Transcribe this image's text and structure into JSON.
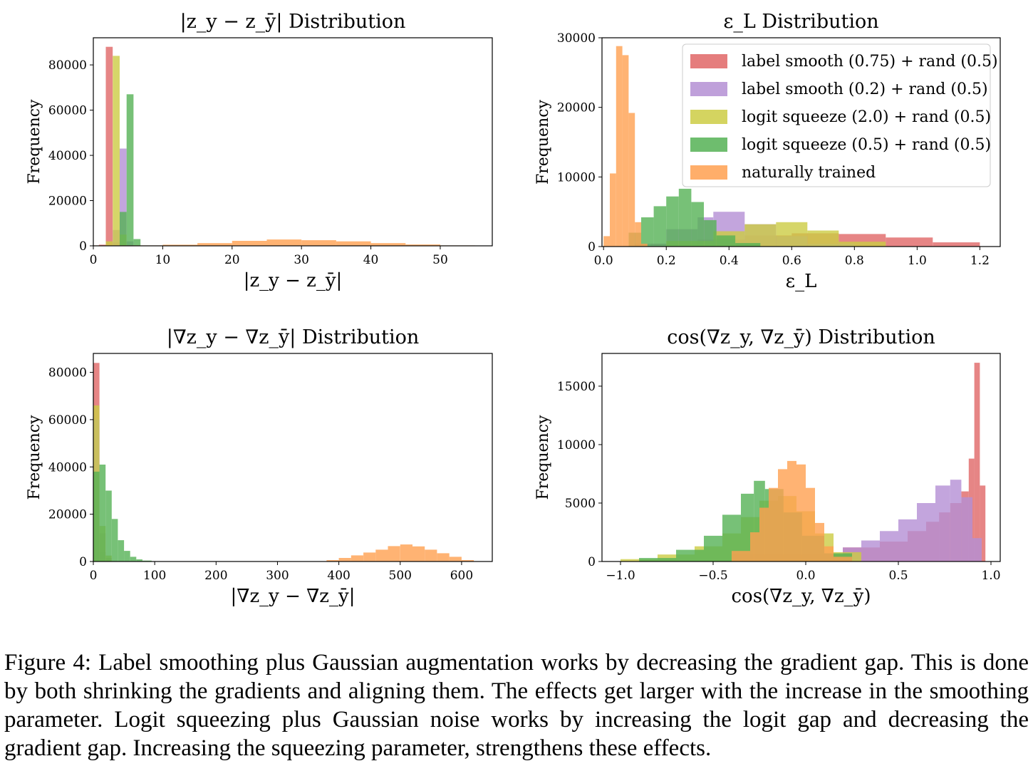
{
  "caption": {
    "label": "Figure 4:",
    "text": "Label smoothing plus Gaussian augmentation works by decreasing the gradient gap. This is done by both shrinking the gradients and aligning them. The effects get larger with the increase in the smoothing parameter. Logit squeezing plus Gaussian noise works by increasing the logit gap and decreasing the gradient gap. Increasing the squeezing parameter, strengthens these effects."
  },
  "colors": {
    "label_smooth_075": "#e06666",
    "label_smooth_02": "#b48fd4",
    "logit_squeeze_20": "#cccc44",
    "logit_squeeze_05": "#55b255",
    "natural": "#ffa050"
  },
  "legend": [
    {
      "key": "label_smooth_075",
      "label": "label smooth (0.75) + rand (0.5)"
    },
    {
      "key": "label_smooth_02",
      "label": "label smooth (0.2) + rand (0.5)"
    },
    {
      "key": "logit_squeeze_20",
      "label": "logit squeeze (2.0) + rand (0.5)"
    },
    {
      "key": "logit_squeeze_05",
      "label": "logit squeeze (0.5) + rand (0.5)"
    },
    {
      "key": "natural",
      "label": "naturally trained"
    }
  ],
  "chart_data": [
    {
      "type": "bar",
      "title": "|z_y − z_ȳ| Distribution",
      "xlabel": "|z_y − z_ȳ|",
      "ylabel": "Frequency",
      "xlim": [
        0,
        57.5
      ],
      "ylim": [
        0,
        92000
      ],
      "xticks": [
        0,
        10,
        20,
        30,
        40,
        50
      ],
      "yticks": [
        0,
        20000,
        40000,
        60000,
        80000
      ],
      "grid": false,
      "series": [
        {
          "key": "label_smooth_075",
          "name": "label smooth (0.75) + rand (0.5)",
          "bins": [
            [
              0.8,
              1.8,
              500
            ],
            [
              1.8,
              2.8,
              88000
            ],
            [
              2.8,
              3.8,
              1500
            ]
          ]
        },
        {
          "key": "label_smooth_02",
          "name": "label smooth (0.2) + rand (0.5)",
          "bins": [
            [
              2.8,
              3.8,
              7000
            ],
            [
              3.8,
              4.8,
              43000
            ],
            [
              4.8,
              5.8,
              2000
            ]
          ]
        },
        {
          "key": "logit_squeeze_20",
          "name": "logit squeeze (2.0) + rand (0.5)",
          "bins": [
            [
              1.8,
              2.8,
              2000
            ],
            [
              2.8,
              3.8,
              84000
            ],
            [
              3.8,
              4.8,
              5000
            ]
          ]
        },
        {
          "key": "logit_squeeze_05",
          "name": "logit squeeze (0.5) + rand (0.5)",
          "bins": [
            [
              3.8,
              4.8,
              15000
            ],
            [
              4.8,
              5.8,
              67000
            ],
            [
              5.8,
              6.8,
              3000
            ]
          ]
        },
        {
          "key": "natural",
          "name": "naturally trained",
          "bins": [
            [
              0,
              10,
              200
            ],
            [
              10,
              15,
              500
            ],
            [
              15,
              20,
              1200
            ],
            [
              20,
              25,
              2200
            ],
            [
              25,
              30,
              2800
            ],
            [
              30,
              35,
              2500
            ],
            [
              35,
              40,
              2000
            ],
            [
              40,
              45,
              1200
            ],
            [
              45,
              50,
              600
            ],
            [
              50,
              55,
              200
            ]
          ]
        }
      ]
    },
    {
      "type": "bar",
      "title": "ε_L Distribution",
      "xlabel": "ε_L",
      "ylabel": "Frequency",
      "xlim": [
        -0.005,
        1.265
      ],
      "ylim": [
        0,
        30000
      ],
      "xticks": [
        0.0,
        0.2,
        0.4,
        0.6,
        0.8,
        1.0,
        1.2
      ],
      "yticks": [
        0,
        10000,
        20000,
        30000
      ],
      "grid": false,
      "legend_position": "top-right",
      "series": [
        {
          "key": "label_smooth_075",
          "name": "label smooth (0.75) + rand (0.5)",
          "bins": [
            [
              0.15,
              0.3,
              400
            ],
            [
              0.3,
              0.45,
              1000
            ],
            [
              0.45,
              0.6,
              1600
            ],
            [
              0.6,
              0.75,
              1900
            ],
            [
              0.75,
              0.9,
              1800
            ],
            [
              0.9,
              1.05,
              1300
            ],
            [
              1.05,
              1.2,
              600
            ]
          ]
        },
        {
          "key": "label_smooth_02",
          "name": "label smooth (0.2) + rand (0.5)",
          "bins": [
            [
              0.1,
              0.2,
              400
            ],
            [
              0.2,
              0.3,
              2500
            ],
            [
              0.3,
              0.35,
              4200
            ],
            [
              0.35,
              0.45,
              5000
            ],
            [
              0.45,
              0.55,
              3200
            ],
            [
              0.55,
              0.65,
              1500
            ],
            [
              0.65,
              0.8,
              400
            ]
          ]
        },
        {
          "key": "logit_squeeze_20",
          "name": "logit squeeze (2.0) + rand (0.5)",
          "bins": [
            [
              0.2,
              0.35,
              800
            ],
            [
              0.35,
              0.45,
              2200
            ],
            [
              0.45,
              0.55,
              3200
            ],
            [
              0.55,
              0.65,
              3500
            ],
            [
              0.65,
              0.75,
              2300
            ],
            [
              0.75,
              0.9,
              700
            ]
          ]
        },
        {
          "key": "logit_squeeze_05",
          "name": "logit squeeze (0.5) + rand (0.5)",
          "bins": [
            [
              0.08,
              0.12,
              2000
            ],
            [
              0.12,
              0.16,
              4200
            ],
            [
              0.16,
              0.2,
              5800
            ],
            [
              0.2,
              0.24,
              7200
            ],
            [
              0.24,
              0.28,
              8300
            ],
            [
              0.28,
              0.32,
              6400
            ],
            [
              0.32,
              0.36,
              3800
            ],
            [
              0.36,
              0.42,
              1600
            ],
            [
              0.42,
              0.5,
              500
            ]
          ]
        },
        {
          "key": "natural",
          "name": "naturally trained",
          "bins": [
            [
              0.0,
              0.02,
              1500
            ],
            [
              0.02,
              0.04,
              10500
            ],
            [
              0.04,
              0.06,
              28800
            ],
            [
              0.06,
              0.08,
              27500
            ],
            [
              0.08,
              0.1,
              19200
            ],
            [
              0.1,
              0.12,
              3500
            ],
            [
              0.12,
              0.14,
              400
            ]
          ]
        }
      ]
    },
    {
      "type": "bar",
      "title": "|∇z_y − ∇z_ȳ| Distribution",
      "xlabel": "|∇z_y − ∇z_ȳ|",
      "ylabel": "Frequency",
      "xlim": [
        0,
        650
      ],
      "ylim": [
        0,
        88000
      ],
      "xticks": [
        0,
        100,
        200,
        300,
        400,
        500,
        600
      ],
      "yticks": [
        0,
        20000,
        40000,
        60000,
        80000
      ],
      "grid": false,
      "series": [
        {
          "key": "label_smooth_075",
          "name": "label smooth (0.75) + rand (0.5)",
          "bins": [
            [
              0,
              10,
              84000
            ],
            [
              10,
              20,
              4000
            ]
          ]
        },
        {
          "key": "label_smooth_02",
          "name": "label smooth (0.2) + rand (0.5)",
          "bins": [
            [
              0,
              10,
              60000
            ],
            [
              10,
              20,
              12000
            ],
            [
              20,
              30,
              1500
            ]
          ]
        },
        {
          "key": "logit_squeeze_20",
          "name": "logit squeeze (2.0) + rand (0.5)",
          "bins": [
            [
              0,
              10,
              66000
            ],
            [
              10,
              20,
              15000
            ],
            [
              20,
              30,
              2500
            ]
          ]
        },
        {
          "key": "logit_squeeze_05",
          "name": "logit squeeze (0.5) + rand (0.5)",
          "bins": [
            [
              0,
              10,
              38000
            ],
            [
              10,
              20,
              41000
            ],
            [
              20,
              30,
              30000
            ],
            [
              30,
              40,
              18000
            ],
            [
              40,
              50,
              9000
            ],
            [
              50,
              60,
              4500
            ],
            [
              60,
              70,
              2000
            ],
            [
              70,
              80,
              900
            ],
            [
              80,
              95,
              400
            ]
          ]
        },
        {
          "key": "natural",
          "name": "naturally trained",
          "bins": [
            [
              380,
              400,
              600
            ],
            [
              400,
              420,
              1500
            ],
            [
              420,
              440,
              2600
            ],
            [
              440,
              460,
              3800
            ],
            [
              460,
              480,
              5000
            ],
            [
              480,
              500,
              6500
            ],
            [
              500,
              520,
              7200
            ],
            [
              520,
              540,
              6400
            ],
            [
              540,
              560,
              5000
            ],
            [
              560,
              580,
              3500
            ],
            [
              580,
              600,
              2000
            ],
            [
              600,
              620,
              600
            ]
          ]
        }
      ]
    },
    {
      "type": "bar",
      "title": "cos(∇z_y, ∇z_ȳ) Distribution",
      "xlabel": "cos(∇z_y, ∇z_ȳ)",
      "ylabel": "Frequency",
      "xlim": [
        -1.1,
        1.05
      ],
      "ylim": [
        0,
        17800
      ],
      "xticks": [
        -1.0,
        -0.5,
        0.0,
        0.5,
        1.0
      ],
      "yticks": [
        0,
        5000,
        10000,
        15000
      ],
      "grid": false,
      "series": [
        {
          "key": "label_smooth_075",
          "name": "label smooth (0.75) + rand (0.5)",
          "bins": [
            [
              -0.4,
              0.2,
              600
            ],
            [
              0.2,
              0.4,
              1200
            ],
            [
              0.4,
              0.55,
              1700
            ],
            [
              0.55,
              0.65,
              2600
            ],
            [
              0.65,
              0.72,
              3400
            ],
            [
              0.72,
              0.78,
              4200
            ],
            [
              0.78,
              0.84,
              5000
            ],
            [
              0.84,
              0.88,
              6000
            ],
            [
              0.88,
              0.91,
              8800
            ],
            [
              0.91,
              0.94,
              17000
            ],
            [
              0.94,
              0.97,
              6500
            ]
          ]
        },
        {
          "key": "label_smooth_02",
          "name": "label smooth (0.2) + rand (0.5)",
          "bins": [
            [
              0.2,
              0.3,
              1200
            ],
            [
              0.3,
              0.4,
              1800
            ],
            [
              0.4,
              0.5,
              2600
            ],
            [
              0.5,
              0.6,
              3600
            ],
            [
              0.6,
              0.7,
              5000
            ],
            [
              0.7,
              0.78,
              6500
            ],
            [
              0.78,
              0.84,
              7000
            ],
            [
              0.84,
              0.9,
              5500
            ],
            [
              0.9,
              0.95,
              2000
            ]
          ]
        },
        {
          "key": "logit_squeeze_20",
          "name": "logit squeeze (2.0) + rand (0.5)",
          "bins": [
            [
              -1.0,
              -0.8,
              200
            ],
            [
              -0.8,
              -0.6,
              600
            ],
            [
              -0.6,
              -0.45,
              1300
            ],
            [
              -0.45,
              -0.35,
              2400
            ],
            [
              -0.35,
              -0.25,
              3800
            ],
            [
              -0.25,
              -0.15,
              5200
            ],
            [
              -0.15,
              -0.05,
              5600
            ],
            [
              -0.05,
              0.05,
              4300
            ],
            [
              0.05,
              0.15,
              2400
            ],
            [
              0.15,
              0.3,
              800
            ]
          ]
        },
        {
          "key": "logit_squeeze_05",
          "name": "logit squeeze (0.5) + rand (0.5)",
          "bins": [
            [
              -0.9,
              -0.7,
              300
            ],
            [
              -0.7,
              -0.55,
              1000
            ],
            [
              -0.55,
              -0.45,
              2200
            ],
            [
              -0.45,
              -0.35,
              4000
            ],
            [
              -0.35,
              -0.28,
              5800
            ],
            [
              -0.28,
              -0.22,
              6900
            ],
            [
              -0.22,
              -0.12,
              6200
            ],
            [
              -0.12,
              -0.02,
              4200
            ],
            [
              -0.02,
              0.1,
              2200
            ],
            [
              0.1,
              0.25,
              700
            ]
          ]
        },
        {
          "key": "natural",
          "name": "naturally trained",
          "bins": [
            [
              -0.4,
              -0.3,
              900
            ],
            [
              -0.3,
              -0.25,
              2500
            ],
            [
              -0.25,
              -0.2,
              4600
            ],
            [
              -0.2,
              -0.15,
              6300
            ],
            [
              -0.15,
              -0.1,
              7900
            ],
            [
              -0.1,
              -0.05,
              8600
            ],
            [
              -0.05,
              0.0,
              8300
            ],
            [
              0.0,
              0.05,
              6300
            ],
            [
              0.05,
              0.1,
              3300
            ],
            [
              0.1,
              0.15,
              1300
            ],
            [
              0.15,
              0.25,
              400
            ]
          ]
        }
      ]
    }
  ]
}
